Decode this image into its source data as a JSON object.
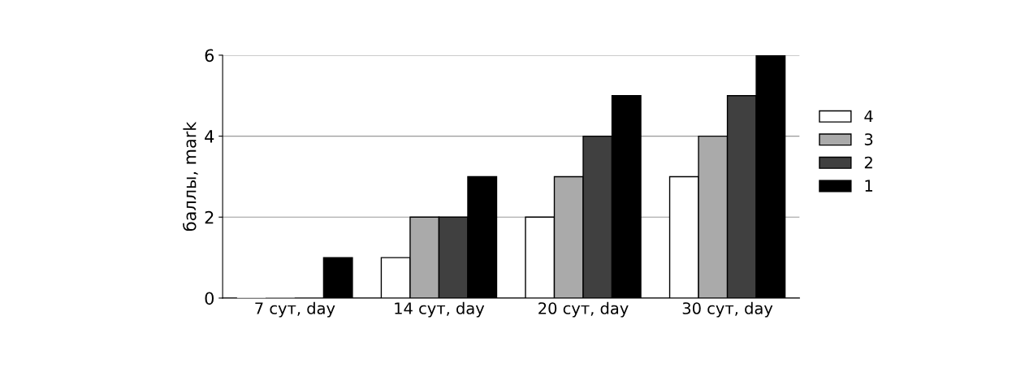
{
  "chart_data": {
    "type": "bar",
    "ylabel": "баллы, mark",
    "categories": [
      "7 сут, day",
      "14 сут, day",
      "20 сут, day",
      "30 сут, day"
    ],
    "series": [
      {
        "name": "4",
        "color": "#ffffff",
        "values": [
          0,
          1,
          2,
          3
        ]
      },
      {
        "name": "3",
        "color": "#aaaaaa",
        "values": [
          0,
          2,
          3,
          4
        ]
      },
      {
        "name": "2",
        "color": "#404040",
        "values": [
          0,
          2,
          4,
          5
        ]
      },
      {
        "name": "1",
        "color": "#000000",
        "values": [
          1,
          3,
          5,
          6
        ]
      }
    ],
    "ylim": [
      0,
      6
    ],
    "yticks": [
      0,
      2,
      4,
      6
    ],
    "grid": "y",
    "legend": "right"
  }
}
